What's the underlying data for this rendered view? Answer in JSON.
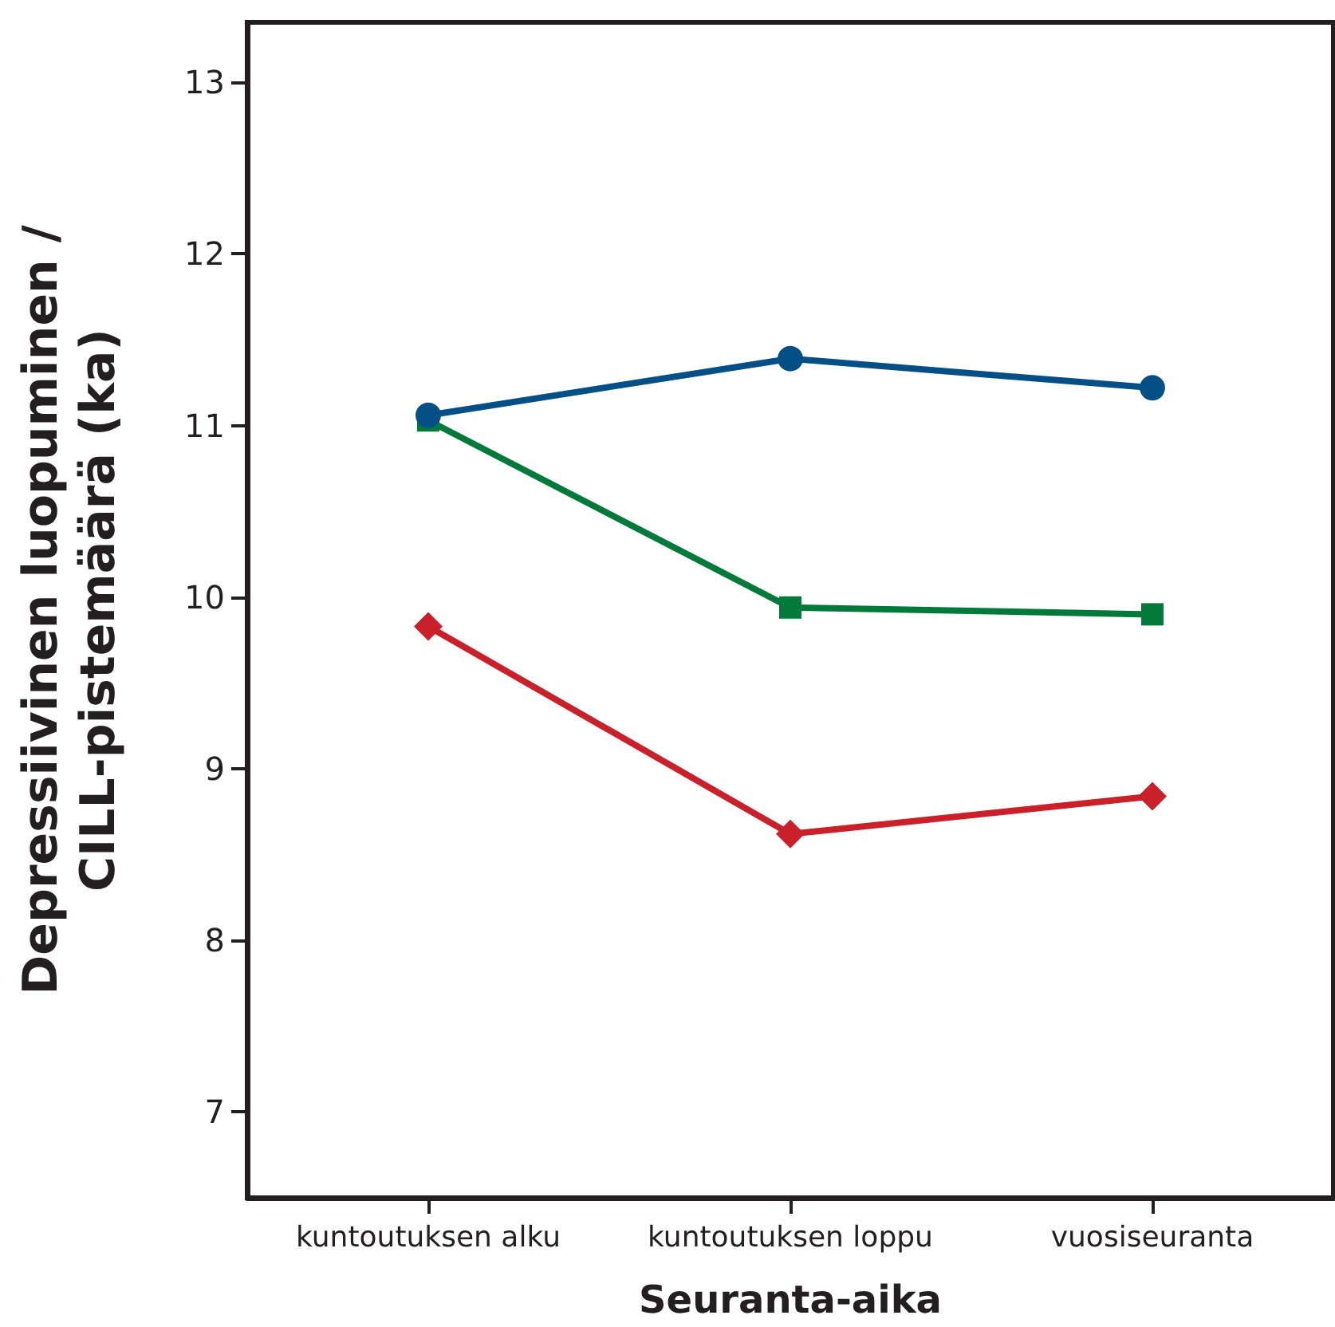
{
  "chart_data": {
    "type": "line",
    "xlabel": "Seuranta-aika",
    "ylabel": "Depressiivinen luopuminen /\nCILL-pistemäärä (ka)",
    "categories": [
      "kuntoutuksen alku",
      "kuntoutuksen loppu",
      "vuosiseuranta"
    ],
    "series": [
      {
        "color": "#034f86",
        "marker": "circle",
        "values": [
          11.06,
          11.39,
          11.22
        ]
      },
      {
        "color": "#047a3a",
        "marker": "square",
        "values": [
          11.03,
          9.94,
          9.9
        ]
      },
      {
        "color": "#c9202a",
        "marker": "diamond",
        "values": [
          9.83,
          8.62,
          8.84
        ]
      }
    ],
    "ylim": [
      6.5,
      13.35
    ],
    "yticks": [
      7,
      8,
      9,
      10,
      11,
      12,
      13
    ],
    "grid": false,
    "line_style": "solid"
  }
}
